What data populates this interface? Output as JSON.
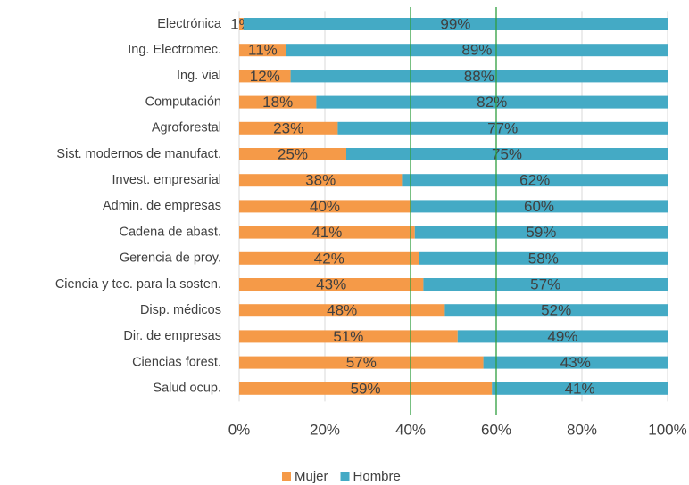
{
  "chart_data": {
    "type": "stacked_barh",
    "categories": [
      "Electrónica",
      "Ing. Electromec.",
      "Ing. vial",
      "Computación",
      "Agroforestal",
      "Sist. modernos de manufact.",
      "Invest. empresarial",
      "Admin. de empresas",
      "Cadena de abast.",
      "Gerencia de proy.",
      "Ciencia y tec. para la sosten.",
      "Disp. médicos",
      "Dir. de empresas",
      "Ciencias forest.",
      "Salud ocup."
    ],
    "series": [
      {
        "name": "Mujer",
        "color": "#f59a48",
        "values": [
          1,
          11,
          12,
          18,
          23,
          25,
          38,
          40,
          41,
          42,
          43,
          48,
          51,
          57,
          59
        ],
        "value_labels": [
          "1%",
          "11%",
          "12%",
          "18%",
          "23%",
          "25%",
          "38%",
          "40%",
          "41%",
          "42%",
          "43%",
          "48%",
          "51%",
          "57%",
          "59%"
        ]
      },
      {
        "name": "Hombre",
        "color": "#44aac5",
        "values": [
          99,
          89,
          88,
          82,
          77,
          75,
          62,
          60,
          59,
          58,
          57,
          52,
          49,
          43,
          41
        ],
        "value_labels": [
          "99%",
          "89%",
          "88%",
          "82%",
          "77%",
          "75%",
          "62%",
          "60%",
          "59%",
          "58%",
          "57%",
          "52%",
          "49%",
          "43%",
          "41%"
        ]
      }
    ],
    "xlim": [
      0,
      100
    ],
    "xticks": [
      {
        "value": 0,
        "label": "0%"
      },
      {
        "value": 20,
        "label": "20%"
      },
      {
        "value": 40,
        "label": "40%"
      },
      {
        "value": 60,
        "label": "60%"
      },
      {
        "value": 80,
        "label": "80%"
      },
      {
        "value": 100,
        "label": "100%"
      }
    ],
    "grid": true,
    "reference_lines": [
      40,
      60
    ],
    "reference_color": "#2e9e3e",
    "legend": "bottom"
  }
}
